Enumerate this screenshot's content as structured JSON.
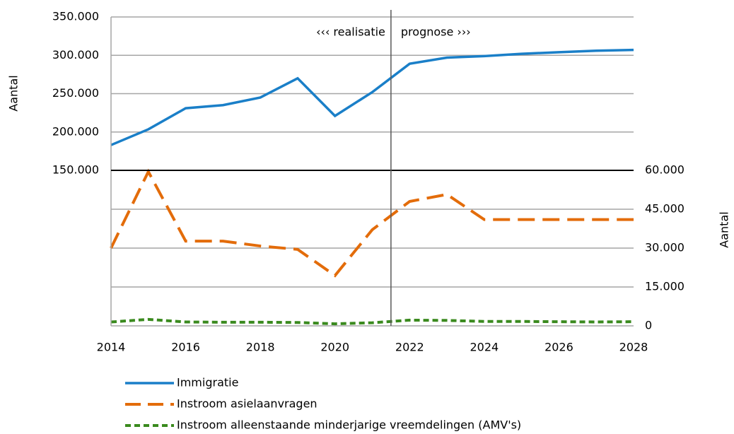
{
  "chart_data": [
    {
      "type": "line",
      "y_label": "Aantal",
      "annotations": [
        "‹‹‹ realisatie",
        "prognose ›››"
      ],
      "divider_x": 2021.5,
      "x": [
        2014,
        2015,
        2016,
        2017,
        2018,
        2019,
        2020,
        2021,
        2022,
        2023,
        2024,
        2025,
        2026,
        2027,
        2028
      ],
      "xlim": [
        2014,
        2028
      ],
      "ylim": [
        150000,
        350000
      ],
      "yticks": [
        {
          "value": 150000,
          "label": "150.000"
        },
        {
          "value": 200000,
          "label": "200.000"
        },
        {
          "value": 250000,
          "label": "250.000"
        },
        {
          "value": 300000,
          "label": "300.000"
        },
        {
          "value": 350000,
          "label": "350.000"
        }
      ],
      "grid": true,
      "y_axis_side": "left",
      "series": [
        {
          "name": "Immigratie",
          "color": "#1a7fc8",
          "style": "solid",
          "values": [
            183000,
            203500,
            231000,
            235000,
            245000,
            270000,
            221000,
            252000,
            289000,
            297000,
            299000,
            302000,
            304000,
            306000,
            307000
          ]
        }
      ]
    },
    {
      "type": "line",
      "y_label": "Aantal",
      "x": [
        2014,
        2015,
        2016,
        2017,
        2018,
        2019,
        2020,
        2021,
        2022,
        2023,
        2024,
        2025,
        2026,
        2027,
        2028
      ],
      "xlim": [
        2014,
        2028
      ],
      "xticks": [
        2014,
        2016,
        2018,
        2020,
        2022,
        2024,
        2026,
        2028
      ],
      "ylim": [
        0,
        60000
      ],
      "yticks": [
        0,
        {
          "value": 15000,
          "label": "15.000"
        },
        {
          "value": 30000,
          "label": "30.000"
        },
        {
          "value": 45000,
          "label": "45.000"
        },
        {
          "value": 60000,
          "label": "60.000"
        }
      ],
      "grid": true,
      "y_axis_side": "right",
      "series": [
        {
          "name": "Instroom asielaanvragen",
          "color": "#e36c0a",
          "style": "long-dash",
          "values": [
            30000,
            59500,
            32700,
            32700,
            30800,
            29500,
            19400,
            37100,
            48000,
            50700,
            41000,
            41000,
            41000,
            41000,
            41000
          ]
        },
        {
          "name": "Instroom alleenstaande minderjarige vreemdelingen (AMV's)",
          "color": "#3a8a1e",
          "style": "short-dash",
          "values": [
            1500,
            2500,
            1500,
            1400,
            1400,
            1300,
            800,
            1200,
            2200,
            2100,
            1700,
            1700,
            1600,
            1500,
            1600
          ]
        }
      ]
    }
  ]
}
